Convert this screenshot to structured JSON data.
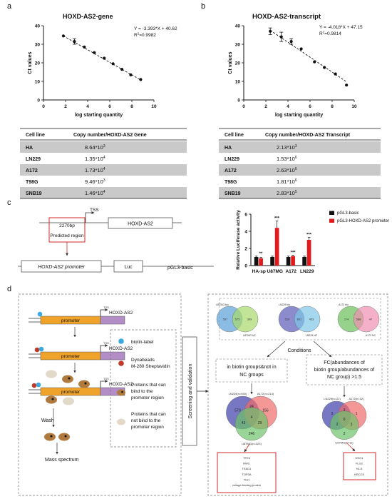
{
  "panel_labels": {
    "a": "a",
    "b": "b",
    "c": "c",
    "d": "d"
  },
  "panel_a": {
    "title": "HOXD-AS2-gene",
    "equation": "Y = -3.393*X + 40.62",
    "r2_prefix": "R",
    "r2_sup": "2",
    "r2_value": "=0.9982"
  },
  "panel_b": {
    "title": "HOXD-AS2-transcript",
    "equation": "Y = -4.018*X + 47.15",
    "r2_prefix": "R",
    "r2_sup": "2",
    "r2_value": "=0.9814"
  },
  "chart_data": [
    {
      "type": "scatter",
      "title": "HOXD-AS2-gene",
      "xlabel": "log starting quantity",
      "ylabel": "Ct values",
      "xlim": [
        0,
        10
      ],
      "ylim": [
        0,
        40
      ],
      "xticks": [
        0,
        2,
        4,
        6,
        8,
        10
      ],
      "yticks": [
        0,
        10,
        20,
        30,
        40
      ],
      "points": [
        {
          "x": 1.8,
          "y": 34.5,
          "err": 0
        },
        {
          "x": 2.8,
          "y": 31.5,
          "err": 1.5
        },
        {
          "x": 3.7,
          "y": 28.5,
          "err": 0
        },
        {
          "x": 4.6,
          "y": 25.5,
          "err": 0
        },
        {
          "x": 5.5,
          "y": 22.5,
          "err": 0
        },
        {
          "x": 6.3,
          "y": 19.5,
          "err": 0
        },
        {
          "x": 7.1,
          "y": 16.5,
          "err": 0
        },
        {
          "x": 7.9,
          "y": 13.5,
          "err": 0
        },
        {
          "x": 8.8,
          "y": 11,
          "err": 0
        }
      ],
      "fit": {
        "slope": -3.393,
        "intercept": 40.62,
        "x_range": [
          1.8,
          8.8
        ]
      }
    },
    {
      "type": "scatter",
      "title": "HOXD-AS2-transcript",
      "xlabel": "log starting quantity",
      "ylabel": "Ct values",
      "xlim": [
        0,
        10
      ],
      "ylim": [
        0,
        40
      ],
      "xticks": [
        0,
        2,
        4,
        6,
        8,
        10
      ],
      "yticks": [
        0,
        10,
        20,
        30,
        40
      ],
      "points": [
        {
          "x": 2.4,
          "y": 37,
          "err": 1.8
        },
        {
          "x": 3.4,
          "y": 34,
          "err": 2.5
        },
        {
          "x": 4.3,
          "y": 31.5,
          "err": 1.5
        },
        {
          "x": 5.2,
          "y": 27.5,
          "err": 0
        },
        {
          "x": 6.4,
          "y": 20.5,
          "err": 0
        },
        {
          "x": 7.3,
          "y": 17.5,
          "err": 0
        },
        {
          "x": 8.3,
          "y": 14,
          "err": 0
        },
        {
          "x": 9.3,
          "y": 8,
          "err": 0
        }
      ],
      "fit": {
        "slope": -4.018,
        "intercept": 47.15,
        "x_range": [
          2.4,
          9.3
        ]
      }
    },
    {
      "type": "bar",
      "ylabel": "Relative Luciferase activity",
      "ylim": [
        0,
        6
      ],
      "yticks": [
        0,
        2,
        4,
        6
      ],
      "categories": [
        "HA-sp",
        "U87MG",
        "A172",
        "LN229"
      ],
      "series": [
        {
          "name": "pGL3-basic",
          "color": "#111111",
          "values": [
            1.0,
            1.0,
            1.0,
            1.0
          ],
          "errors": [
            0.1,
            0.1,
            0.1,
            0.1
          ]
        },
        {
          "name": "pGL3-HOXD-AS2 promoter",
          "color": "#e31a1c",
          "values": [
            0.85,
            4.4,
            1.1,
            3.0
          ],
          "errors": [
            0.1,
            0.8,
            0.1,
            0.3
          ]
        }
      ],
      "significance": [
        "**",
        "***",
        "***",
        "***"
      ],
      "legend": "top-right"
    }
  ],
  "table_a": {
    "headers": [
      "Cell line",
      "Copy number/HOXD-AS2 Gene"
    ],
    "rows": [
      {
        "cell": "HA",
        "base": "8.64*10",
        "exp": "3"
      },
      {
        "cell": "LN229",
        "base": "1.35*10",
        "exp": "4"
      },
      {
        "cell": "A172",
        "base": "1.73*10",
        "exp": "4"
      },
      {
        "cell": "T98G",
        "base": "9.46*10",
        "exp": "3"
      },
      {
        "cell": "SNB19",
        "base": "1.46*10",
        "exp": "4"
      }
    ]
  },
  "table_b": {
    "headers": [
      "Cell line",
      "Copy number/HOXD-AS2 Transcript"
    ],
    "rows": [
      {
        "cell": "HA",
        "base": "2.13*10",
        "exp": "3"
      },
      {
        "cell": "LN229",
        "base": "1.53*10",
        "exp": "6"
      },
      {
        "cell": "A172",
        "base": "2.63*10",
        "exp": "6"
      },
      {
        "cell": "T98G",
        "base": "1.81*10",
        "exp": "6"
      },
      {
        "cell": "SNB19",
        "base": "2.83*10",
        "exp": "5"
      }
    ]
  },
  "panel_c": {
    "tss": "TSS",
    "gene": "HOXD-AS2",
    "region_len": "2270bp",
    "predicted": "Predicted region",
    "promoter": "HOXD-AS2 promoter",
    "luc": "Luc",
    "vector": "pGL3-basic"
  },
  "panel_d": {
    "steps": {
      "promoter": "promoter",
      "tss": "TSS",
      "gene": "HOXD-AS2",
      "wash": "Wash",
      "mass": "Mass spectrum"
    },
    "legend": {
      "biotin": "biotin-label",
      "dyna1": "Dynabeads",
      "dyna2": "M-280 Streptavidin",
      "bind1": "Proteins that can",
      "bind2": "bind to the",
      "bind3": "promoter region",
      "nobind1": "Proteins that can",
      "nobind2": "not bind to the",
      "nobind3": "promoter region"
    },
    "screening": "Screening and validation",
    "conditions": "Conditions",
    "cond_left1": "in biotin groups&not in",
    "cond_left2": "NC groups",
    "cond_right1": "FC(abundances of",
    "cond_right2": "biotin group/abundances of",
    "cond_right3": "NC group) >1.5",
    "top_venns": [
      {
        "l1": "U87MG bio",
        "l2": "U87MG NC",
        "a": "557",
        "ab": "575",
        "b": "399"
      },
      {
        "l1": "LN229 bio",
        "l2": "LN229 NC",
        "a": "520",
        "ab": "601",
        "b": "453"
      },
      {
        "l1": "A172 bio",
        "l2": "A172 NC",
        "a": "274",
        "ab": "588",
        "b": "47"
      }
    ],
    "venn_left": {
      "labels": [
        "LN229(n=940)",
        "A172(n=214)",
        "U87MG(n=323)"
      ],
      "numbers": [
        "570",
        "24",
        "156",
        "43",
        "4",
        "29",
        "246"
      ]
    },
    "venn_right": {
      "labels": [
        "LN229(n=21)",
        "A172(n=32)",
        "U87MG(n=11)"
      ],
      "numbers": [
        "3",
        "3",
        "1",
        "2",
        "0",
        "3",
        "2"
      ]
    },
    "result_left": [
      "TFE3",
      "RMI1",
      "TEAD1",
      "TOP3A",
      "TIA1",
      "collage-binding protein"
    ],
    "result_right": [
      "DSG1",
      "FLG2",
      "H1-5",
      "KRCC5"
    ]
  }
}
